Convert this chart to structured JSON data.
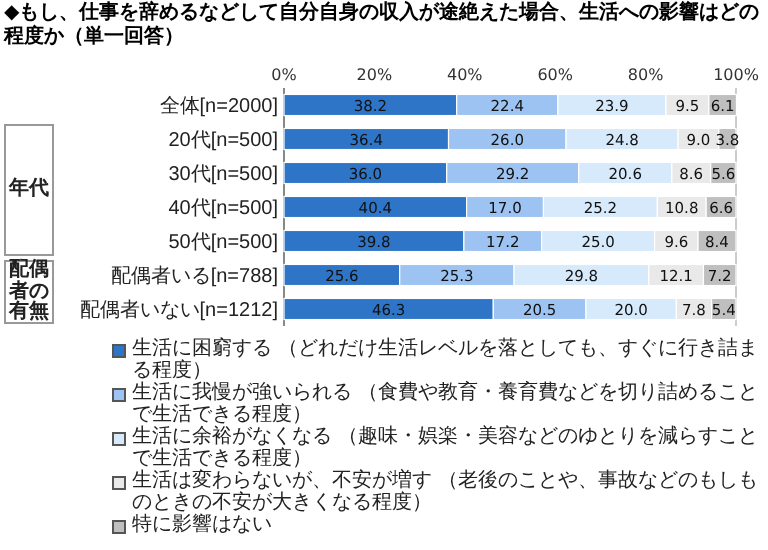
{
  "chart_data": {
    "type": "bar",
    "orientation": "horizontal",
    "stacked": true,
    "title": "◆もし、仕事を辞めるなどして自分自身の収入が途絶えた場合、生活への影響はどの程度か",
    "subtitle": "（単一回答）",
    "categories": [
      "全体[n=2000]",
      "20代[n=500]",
      "30代[n=500]",
      "40代[n=500]",
      "50代[n=500]",
      "配偶者いる[n=788]",
      "配偶者いない[n=1212]"
    ],
    "series": [
      {
        "name": "生活に困窮する （どれだけ生活レベルを落としても、すぐに行き詰まる程度）",
        "color": "#2e75c8",
        "values": [
          38.2,
          36.4,
          36.0,
          40.4,
          39.8,
          25.6,
          46.3
        ],
        "value_labels": [
          "38.2",
          "36.4",
          "36.0",
          "40.4",
          "39.8",
          "25.6",
          "46.3"
        ]
      },
      {
        "name": "生活に我慢が強いられる （食費や教育・養育費などを切り詰めることで生活できる程度）",
        "color": "#9dc3f2",
        "values": [
          22.4,
          26.0,
          29.2,
          17.0,
          17.2,
          25.3,
          20.5
        ],
        "value_labels": [
          "22.4",
          "26.0",
          "29.2",
          "17.0",
          "17.2",
          "25.3",
          "20.5"
        ]
      },
      {
        "name": "生活に余裕がなくなる （趣味・娯楽・美容などのゆとりを減らすことで生活できる程度）",
        "color": "#d6eafc",
        "values": [
          23.9,
          24.8,
          20.6,
          25.2,
          25.0,
          29.8,
          20.0
        ],
        "value_labels": [
          "23.9",
          "24.8",
          "20.6",
          "25.2",
          "25.0",
          "29.8",
          "20.0"
        ]
      },
      {
        "name": "生活は変わらないが、不安が増す （老後のことや、事故などのもしものときの不安が大きくなる程度）",
        "color": "#e9e9e9",
        "values": [
          9.5,
          9.0,
          8.6,
          10.8,
          9.6,
          12.1,
          7.8
        ],
        "value_labels": [
          "9.5",
          "9.0",
          "8.6",
          "10.8",
          "9.6",
          "12.1",
          "7.8"
        ]
      },
      {
        "name": "特に影響はない",
        "color": "#bfbfbf",
        "values": [
          6.1,
          3.8,
          5.6,
          6.6,
          8.4,
          7.2,
          5.4
        ],
        "value_labels": [
          "6.1",
          "3.8",
          "5.6",
          "6.6",
          "8.4",
          "7.2",
          "5.4"
        ]
      }
    ],
    "xlim": [
      0,
      100
    ],
    "xticks": [
      {
        "value": 0,
        "label": "0%"
      },
      {
        "value": 20,
        "label": "20%"
      },
      {
        "value": 40,
        "label": "40%"
      },
      {
        "value": 60,
        "label": "60%"
      },
      {
        "value": 80,
        "label": "80%"
      },
      {
        "value": 100,
        "label": "100%"
      }
    ],
    "grid": false,
    "legend": "bottom",
    "annotations": [
      "年代",
      "配偶者の有無"
    ]
  }
}
